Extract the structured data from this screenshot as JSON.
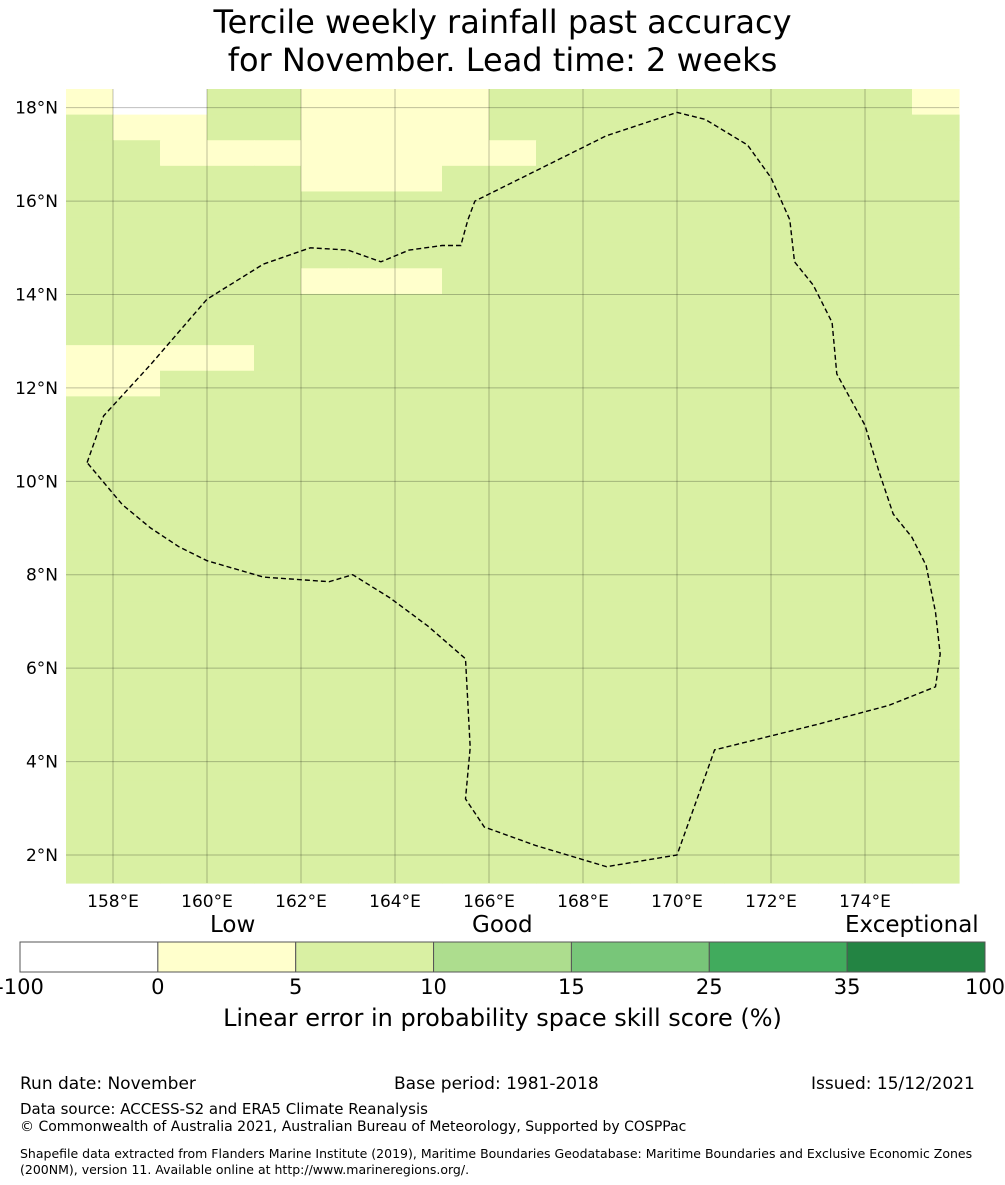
{
  "title_line1": "Tercile weekly rainfall past accuracy",
  "title_line2": "for November. Lead time: 2 weeks",
  "map": {
    "lon_range": [
      157,
      176
    ],
    "lat_range": [
      1.4,
      18.4
    ],
    "grid_step_deg": 2,
    "lat_ticks": [
      {
        "value": 18,
        "label": "18°N"
      },
      {
        "value": 16,
        "label": "16°N"
      },
      {
        "value": 14,
        "label": "14°N"
      },
      {
        "value": 12,
        "label": "12°N"
      },
      {
        "value": 10,
        "label": "10°N"
      },
      {
        "value": 8,
        "label": "8°N"
      },
      {
        "value": 6,
        "label": "6°N"
      },
      {
        "value": 4,
        "label": "4°N"
      },
      {
        "value": 2,
        "label": "2°N"
      }
    ],
    "lon_ticks": [
      {
        "value": 158,
        "label": "158°E"
      },
      {
        "value": 160,
        "label": "160°E"
      },
      {
        "value": 162,
        "label": "162°E"
      },
      {
        "value": 164,
        "label": "164°E"
      },
      {
        "value": 166,
        "label": "166°E"
      },
      {
        "value": 168,
        "label": "168°E"
      },
      {
        "value": 170,
        "label": "170°E"
      },
      {
        "value": 172,
        "label": "172°E"
      },
      {
        "value": 174,
        "label": "174°E"
      }
    ],
    "grid_legend": "class index per cell: 0=below 0, 1=0-5, 2=5-10, 3=10-15, 4=15-25, 5=25-35; rows north to south, columns west to east",
    "grid": [
      "1002211112222222221",
      "2112211112222222222",
      "2211111111222222222",
      "2222211122222222222",
      "2222222222222222222",
      "2222222222222222222",
      "2222222222222222222",
      "2222211122222222222",
      "2222222222222222222",
      "2222222222222222222",
      "1111222222222222222",
      "1122222222222222222",
      "2222222222222222222",
      "2222222222222222222",
      "2222222222222222222",
      "2222222222222222222",
      "2222222222222222222",
      "2222222222222222222",
      "2222222222222222222",
      "2222222222222222222",
      "2222222222222222222",
      "2222222222222222222",
      "2222222222222222222",
      "2222222222222222222",
      "2222222222222222222",
      "2222222222222222222",
      "2222222222222222222",
      "2222222222222222222",
      "2222222222222222222",
      "2222222222222222222",
      "2222222222222222222"
    ],
    "eez_boundary": [
      [
        157.45,
        10.4
      ],
      [
        157.8,
        11.4
      ],
      [
        158.8,
        12.5
      ],
      [
        160,
        13.9
      ],
      [
        161.2,
        14.65
      ],
      [
        162.2,
        15.0
      ],
      [
        163.0,
        14.95
      ],
      [
        163.7,
        14.7
      ],
      [
        164.3,
        14.95
      ],
      [
        165.0,
        15.05
      ],
      [
        165.4,
        15.05
      ],
      [
        165.55,
        15.6
      ],
      [
        165.7,
        16.0
      ],
      [
        168.5,
        17.4
      ],
      [
        170.0,
        17.9
      ],
      [
        170.6,
        17.75
      ],
      [
        171.5,
        17.2
      ],
      [
        172.0,
        16.5
      ],
      [
        172.4,
        15.6
      ],
      [
        172.5,
        14.7
      ],
      [
        172.9,
        14.2
      ],
      [
        173.3,
        13.4
      ],
      [
        173.4,
        12.3
      ],
      [
        174.0,
        11.2
      ],
      [
        174.3,
        10.2
      ],
      [
        174.6,
        9.3
      ],
      [
        175.0,
        8.8
      ],
      [
        175.3,
        8.2
      ],
      [
        175.5,
        7.2
      ],
      [
        175.6,
        6.3
      ],
      [
        175.5,
        5.6
      ],
      [
        174.5,
        5.2
      ],
      [
        173.0,
        4.8
      ],
      [
        172.0,
        4.55
      ],
      [
        170.8,
        4.25
      ],
      [
        170.0,
        2.0
      ],
      [
        168.5,
        1.75
      ],
      [
        167.0,
        2.2
      ],
      [
        165.9,
        2.6
      ],
      [
        165.5,
        3.2
      ],
      [
        165.6,
        4.3
      ],
      [
        165.5,
        6.2
      ],
      [
        164.7,
        6.9
      ],
      [
        163.9,
        7.5
      ],
      [
        163.1,
        8.0
      ],
      [
        162.6,
        7.85
      ],
      [
        161.2,
        7.95
      ],
      [
        160.0,
        8.3
      ],
      [
        159.4,
        8.6
      ],
      [
        158.8,
        9.0
      ],
      [
        158.2,
        9.5
      ],
      [
        157.45,
        10.4
      ]
    ]
  },
  "colorbar": {
    "level_labels": {
      "low": "Low",
      "good": "Good",
      "exceptional": "Exceptional"
    },
    "bins": [
      {
        "from": "-100",
        "to": "0",
        "color": "#ffffff"
      },
      {
        "from": "0",
        "to": "5",
        "color": "#ffffcc"
      },
      {
        "from": "5",
        "to": "10",
        "color": "#d9f0a3"
      },
      {
        "from": "10",
        "to": "15",
        "color": "#addd8e"
      },
      {
        "from": "15",
        "to": "25",
        "color": "#78c679"
      },
      {
        "from": "25",
        "to": "35",
        "color": "#41ab5d"
      },
      {
        "from": "35",
        "to": "100",
        "color": "#238443"
      }
    ],
    "ticks": [
      "-100",
      "0",
      "5",
      "10",
      "15",
      "25",
      "35",
      "100"
    ],
    "caption": "Linear error in probability space skill score (%)"
  },
  "footer": {
    "run_date": "Run date: November",
    "base_period": "Base period: 1981-2018",
    "issued": "Issued: 15/12/2021",
    "data_source": "Data source: ACCESS-S2 and ERA5 Climate Reanalysis",
    "copyright": "© Commonwealth of Australia 2021, Australian Bureau of Meteorology, Supported by COSPPac",
    "shapefile_note": "Shapefile data extracted from Flanders Marine Institute (2019), Maritime Boundaries Geodatabase: Maritime Boundaries and Exclusive Economic Zones (200NM), version 11. Available online at http://www.marineregions.org/."
  }
}
